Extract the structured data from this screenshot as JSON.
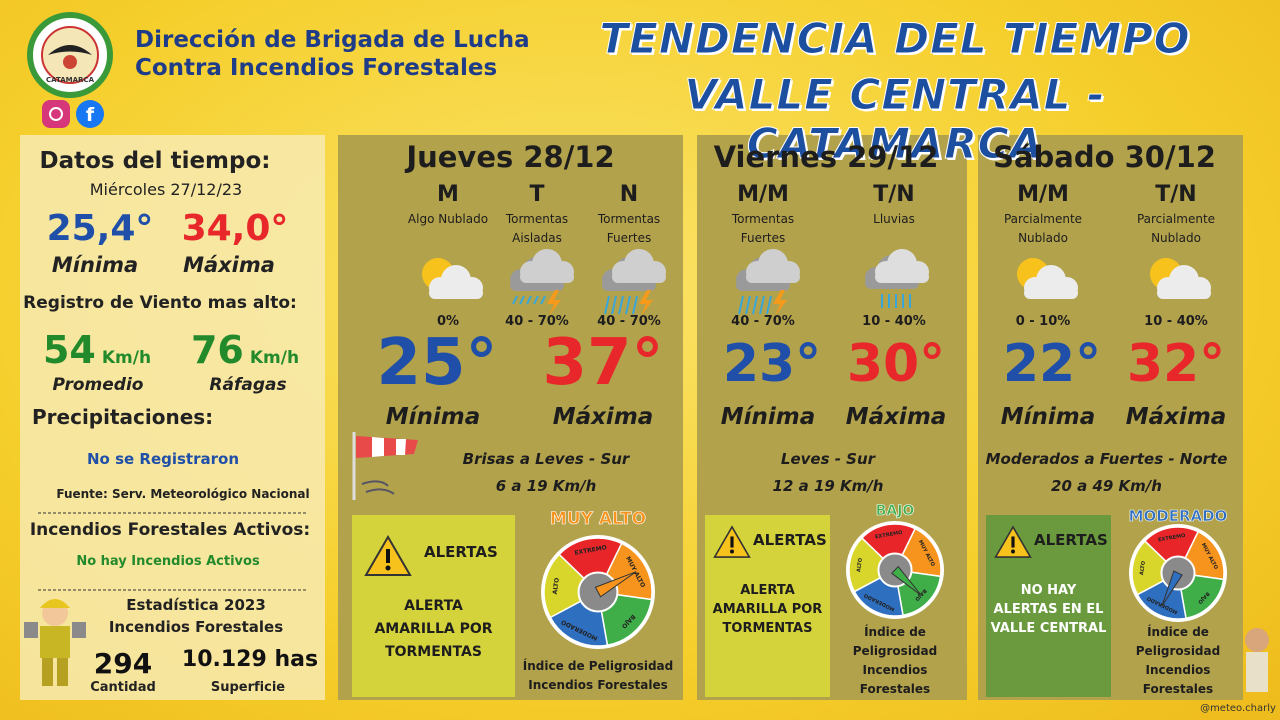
{
  "header": {
    "logo_text": "CATAMARCA",
    "org_line1": "Dirección de Brigada de Lucha",
    "org_line2": "Contra Incendios Forestales",
    "title_line1": "TENDENCIA DEL TIEMPO",
    "title_line2": "VALLE CENTRAL - CATAMARCA"
  },
  "summary": {
    "title": "Datos del tiempo:",
    "date": "Miércoles 27/12/23",
    "min": "25,4°",
    "min_label": "Mínima",
    "max": "34,0°",
    "max_label": "Máxima",
    "wind_title": "Registro de Viento mas alto:",
    "wind_avg": "54",
    "wind_avg_unit": "Km/h",
    "wind_avg_label": "Promedio",
    "wind_gust": "76",
    "wind_gust_unit": "Km/h",
    "wind_gust_label": "Ráfagas",
    "precip_title": "Precipitaciones:",
    "precip_value": "No se Registraron",
    "source": "Fuente: Serv. Meteorológico Nacional",
    "fires_title": "Incendios Forestales Activos:",
    "fires_value": "No hay Incendios Activos",
    "stats_title": "Estadística 2023",
    "stats_subtitle": "Incendios Forestales",
    "count": "294",
    "count_label": "Cantidad",
    "area": "10.129 has",
    "area_label": "Superficie"
  },
  "gauge_levels": [
    "EXTREMO",
    "MUY ALTO",
    "BAJO",
    "MODERADO",
    "ALTO"
  ],
  "days": [
    {
      "title": "Jueves 28/12",
      "periods": [
        {
          "label": "M",
          "desc": "Algo Nublado",
          "prob": "0%"
        },
        {
          "label": "T",
          "desc": "Tormentas Aisladas",
          "prob": "40 - 70%"
        },
        {
          "label": "N",
          "desc": "Tormentas Fuertes",
          "prob": "40 - 70%"
        }
      ],
      "min": "25°",
      "min_label": "Mínima",
      "max": "37°",
      "max_label": "Máxima",
      "wind": "Brisas a Leves - Sur",
      "wind_speed": "6 a 19 Km/h",
      "alert_title": "ALERTAS",
      "alert_text": "ALERTA AMARILLA POR TORMENTAS",
      "alert_color": "#d5d33c",
      "danger_level": "MUY ALTO",
      "danger_caption": "Índice de Peligrosidad Incendios Forestales"
    },
    {
      "title": "Viernes 29/12",
      "periods": [
        {
          "label": "M/M",
          "desc": "Tormentas Fuertes",
          "prob": "40 - 70%"
        },
        {
          "label": "T/N",
          "desc": "Lluvias",
          "prob": "10 - 40%"
        }
      ],
      "min": "23°",
      "min_label": "Mínima",
      "max": "30°",
      "max_label": "Máxima",
      "wind": "Leves - Sur",
      "wind_speed": "12 a 19 Km/h",
      "alert_title": "ALERTAS",
      "alert_text": "ALERTA AMARILLA POR TORMENTAS",
      "alert_color": "#d5d33c",
      "danger_level": "BAJO",
      "danger_caption": "Índice de Peligrosidad Incendios Forestales"
    },
    {
      "title": "Sábado 30/12",
      "periods": [
        {
          "label": "M/M",
          "desc": "Parcialmente Nublado",
          "prob": "0 - 10%"
        },
        {
          "label": "T/N",
          "desc": "Parcialmente Nublado",
          "prob": "10 - 40%"
        }
      ],
      "min": "22°",
      "min_label": "Mínima",
      "max": "32°",
      "max_label": "Máxima",
      "wind": "Moderados a Fuertes - Norte",
      "wind_speed": "20 a 49 Km/h",
      "alert_title": "ALERTAS",
      "alert_text": "NO HAY ALERTAS EN EL VALLE CENTRAL",
      "alert_color": "#6b9a3e",
      "danger_level": "MODERADO",
      "danger_caption": "Índice de Peligrosidad Incendios Forestales"
    }
  ],
  "footer": {
    "credit": "@meteo.charly"
  }
}
